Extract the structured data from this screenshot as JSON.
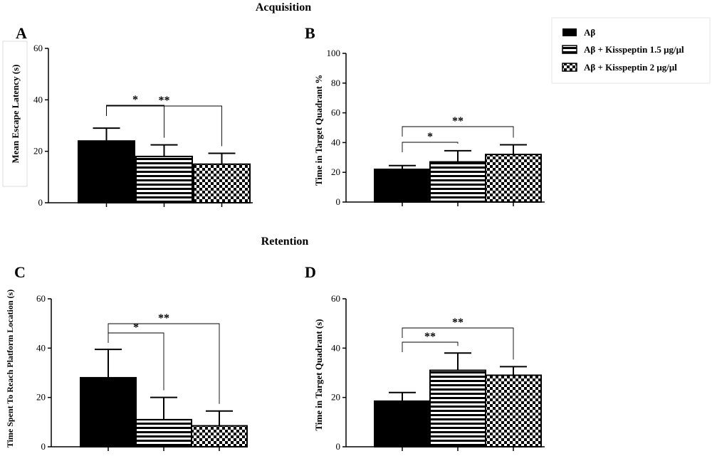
{
  "figure": {
    "section_top": "Acquisition",
    "section_bottom": "Retention"
  },
  "legend": {
    "items": [
      {
        "label": "Aβ",
        "pattern": "solid"
      },
      {
        "label": "Aβ + Kisspeptin 1.5 μg/μl",
        "pattern": "hlines"
      },
      {
        "label": "Aβ + Kisspeptin 2 μg/μl",
        "pattern": "checker"
      }
    ]
  },
  "chart_data": [
    {
      "panel": "A",
      "type": "bar",
      "categories": [
        "Aβ",
        "Aβ + Kisspeptin 1.5 μg/μl",
        "Aβ + Kisspeptin 2 μg/μl"
      ],
      "values": [
        24,
        18,
        15
      ],
      "errors": [
        5,
        4.5,
        4.2
      ],
      "ylabel": "Mean Escape Latency (s)",
      "ylim": [
        0,
        60
      ],
      "yticks": [
        0,
        20,
        40,
        60
      ],
      "significance": [
        {
          "from": 0,
          "to": 1,
          "label": "*"
        },
        {
          "from": 0,
          "to": 2,
          "label": "**"
        }
      ]
    },
    {
      "panel": "B",
      "type": "bar",
      "categories": [
        "Aβ",
        "Aβ + Kisspeptin 1.5 μg/μl",
        "Aβ + Kisspeptin 2 μg/μl"
      ],
      "values": [
        22,
        27,
        32
      ],
      "errors": [
        2.5,
        7.5,
        6.5
      ],
      "ylabel": "Time in Target Quadrant %",
      "ylim": [
        0,
        100
      ],
      "yticks": [
        0,
        20,
        40,
        60,
        80,
        100
      ],
      "significance": [
        {
          "from": 0,
          "to": 1,
          "label": "*"
        },
        {
          "from": 0,
          "to": 2,
          "label": "**"
        }
      ]
    },
    {
      "panel": "C",
      "type": "bar",
      "categories": [
        "Aβ",
        "Aβ + Kisspeptin 1.5 μg/μl",
        "Aβ + Kisspeptin 2 μg/μl"
      ],
      "values": [
        28,
        11,
        8.5
      ],
      "errors": [
        11.5,
        9,
        6
      ],
      "ylabel": "Time Spent To Reach Platform Location (s)",
      "ylim": [
        0,
        60
      ],
      "yticks": [
        0,
        20,
        40,
        60
      ],
      "significance": [
        {
          "from": 0,
          "to": 1,
          "label": "*"
        },
        {
          "from": 0,
          "to": 2,
          "label": "**"
        }
      ]
    },
    {
      "panel": "D",
      "type": "bar",
      "categories": [
        "Aβ",
        "Aβ + Kisspeptin 1.5 μg/μl",
        "Aβ + Kisspeptin 2 μg/μl"
      ],
      "values": [
        18.5,
        31,
        29
      ],
      "errors": [
        3.5,
        7,
        3.5
      ],
      "ylabel": "Time in Target Quadrant (s)",
      "ylim": [
        0,
        60
      ],
      "yticks": [
        0,
        20,
        40,
        60
      ],
      "significance": [
        {
          "from": 0,
          "to": 1,
          "label": "**"
        },
        {
          "from": 0,
          "to": 2,
          "label": "**"
        }
      ]
    }
  ]
}
